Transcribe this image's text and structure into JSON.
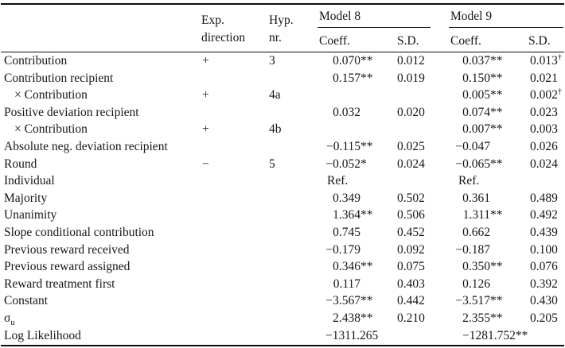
{
  "page": {
    "background": "#ffffff",
    "text_color": "#161616",
    "rule_color": "#0c0c0c"
  },
  "table": {
    "header": {
      "exp_direction_line1": "Exp.",
      "exp_direction_line2": "direction",
      "hyp_line1": "Hyp.",
      "hyp_line2": "nr.",
      "model8_label": "Model 8",
      "model9_label": "Model 9",
      "coeff_label": "Coeff.",
      "sd_label": "S.D."
    },
    "rows": [
      {
        "label": "Contribution",
        "indent": false,
        "dir": "+",
        "hyp": "3",
        "m8_coeff": "0.070",
        "m8_coeff_mark": "**",
        "m8_sd": "0.012",
        "m8_sd_mark": "",
        "m9_coeff": "0.037",
        "m9_coeff_mark": "**",
        "m9_sd": "0.013",
        "m9_sd_mark": "†"
      },
      {
        "label": "Contribution recipient",
        "indent": false,
        "dir": "",
        "hyp": "",
        "m8_coeff": "0.157",
        "m8_coeff_mark": "**",
        "m8_sd": "0.019",
        "m8_sd_mark": "",
        "m9_coeff": "0.150",
        "m9_coeff_mark": "**",
        "m9_sd": "0.021",
        "m9_sd_mark": ""
      },
      {
        "label": "× Contribution",
        "indent": true,
        "dir": "+",
        "hyp": "4a",
        "m8_coeff": "",
        "m8_coeff_mark": "",
        "m8_sd": "",
        "m8_sd_mark": "",
        "m9_coeff": "0.005",
        "m9_coeff_mark": "**",
        "m9_sd": "0.002",
        "m9_sd_mark": "†"
      },
      {
        "label": "Positive deviation recipient",
        "indent": false,
        "dir": "",
        "hyp": "",
        "m8_coeff": "0.032",
        "m8_coeff_mark": "",
        "m8_sd": "0.020",
        "m8_sd_mark": "",
        "m9_coeff": "0.074",
        "m9_coeff_mark": "**",
        "m9_sd": "0.023",
        "m9_sd_mark": ""
      },
      {
        "label": "× Contribution",
        "indent": true,
        "dir": "+",
        "hyp": "4b",
        "m8_coeff": "",
        "m8_coeff_mark": "",
        "m8_sd": "",
        "m8_sd_mark": "",
        "m9_coeff": "0.007",
        "m9_coeff_mark": "**",
        "m9_sd": "0.003",
        "m9_sd_mark": ""
      },
      {
        "label": "Absolute neg. deviation recipient",
        "indent": false,
        "dir": "",
        "hyp": "",
        "m8_coeff": "−0.115",
        "m8_coeff_mark": "**",
        "m8_sd": "0.025",
        "m8_sd_mark": "",
        "m9_coeff": "−0.047",
        "m9_coeff_mark": "",
        "m9_sd": "0.026",
        "m9_sd_mark": ""
      },
      {
        "label": "Round",
        "indent": false,
        "dir": "−",
        "hyp": "5",
        "m8_coeff": "−0.052",
        "m8_coeff_mark": "*",
        "m8_sd": "0.024",
        "m8_sd_mark": "",
        "m9_coeff": "−0.065",
        "m9_coeff_mark": "**",
        "m9_sd": "0.024",
        "m9_sd_mark": ""
      },
      {
        "label": "Individual",
        "indent": false,
        "dir": "",
        "hyp": "",
        "m8_coeff": "Ref.",
        "m8_coeff_mark": "",
        "m8_sd": "",
        "m8_sd_mark": "",
        "m9_coeff": "Ref.",
        "m9_coeff_mark": "",
        "m9_sd": "",
        "m9_sd_mark": ""
      },
      {
        "label": "Majority",
        "indent": false,
        "dir": "",
        "hyp": "",
        "m8_coeff": "0.349",
        "m8_coeff_mark": "",
        "m8_sd": "0.502",
        "m8_sd_mark": "",
        "m9_coeff": "0.361",
        "m9_coeff_mark": "",
        "m9_sd": "0.489",
        "m9_sd_mark": ""
      },
      {
        "label": "Unanimity",
        "indent": false,
        "dir": "",
        "hyp": "",
        "m8_coeff": "1.364",
        "m8_coeff_mark": "**",
        "m8_sd": "0.506",
        "m8_sd_mark": "",
        "m9_coeff": "1.311",
        "m9_coeff_mark": "**",
        "m9_sd": "0.492",
        "m9_sd_mark": ""
      },
      {
        "label": "Slope conditional contribution",
        "indent": false,
        "dir": "",
        "hyp": "",
        "m8_coeff": "0.745",
        "m8_coeff_mark": "",
        "m8_sd": "0.452",
        "m8_sd_mark": "",
        "m9_coeff": "0.662",
        "m9_coeff_mark": "",
        "m9_sd": "0.439",
        "m9_sd_mark": ""
      },
      {
        "label": "Previous reward received",
        "indent": false,
        "dir": "",
        "hyp": "",
        "m8_coeff": "−0.179",
        "m8_coeff_mark": "",
        "m8_sd": "0.092",
        "m8_sd_mark": "",
        "m9_coeff": "−0.187",
        "m9_coeff_mark": "",
        "m9_sd": "0.100",
        "m9_sd_mark": ""
      },
      {
        "label": "Previous reward assigned",
        "indent": false,
        "dir": "",
        "hyp": "",
        "m8_coeff": "0.346",
        "m8_coeff_mark": "**",
        "m8_sd": "0.075",
        "m8_sd_mark": "",
        "m9_coeff": "0.350",
        "m9_coeff_mark": "**",
        "m9_sd": "0.076",
        "m9_sd_mark": ""
      },
      {
        "label": "Reward treatment first",
        "indent": false,
        "dir": "",
        "hyp": "",
        "m8_coeff": "0.117",
        "m8_coeff_mark": "",
        "m8_sd": "0.403",
        "m8_sd_mark": "",
        "m9_coeff": "0.126",
        "m9_coeff_mark": "",
        "m9_sd": "0.392",
        "m9_sd_mark": ""
      },
      {
        "label": "Constant",
        "indent": false,
        "dir": "",
        "hyp": "",
        "m8_coeff": "−3.567",
        "m8_coeff_mark": "**",
        "m8_sd": "0.442",
        "m8_sd_mark": "",
        "m9_coeff": "−3.517",
        "m9_coeff_mark": "**",
        "m9_sd": "0.430",
        "m9_sd_mark": ""
      },
      {
        "label": "σ",
        "label_sub": "u",
        "indent": false,
        "dir": "",
        "hyp": "",
        "m8_coeff": "2.438",
        "m8_coeff_mark": "**",
        "m8_sd": "0.210",
        "m8_sd_mark": "",
        "m9_coeff": "2.355",
        "m9_coeff_mark": "**",
        "m9_sd": "0.205",
        "m9_sd_mark": ""
      }
    ],
    "log_likelihood": {
      "label": "Log Likelihood",
      "model8_value": "−1311.265",
      "model9_value": "−1281.752**"
    }
  }
}
